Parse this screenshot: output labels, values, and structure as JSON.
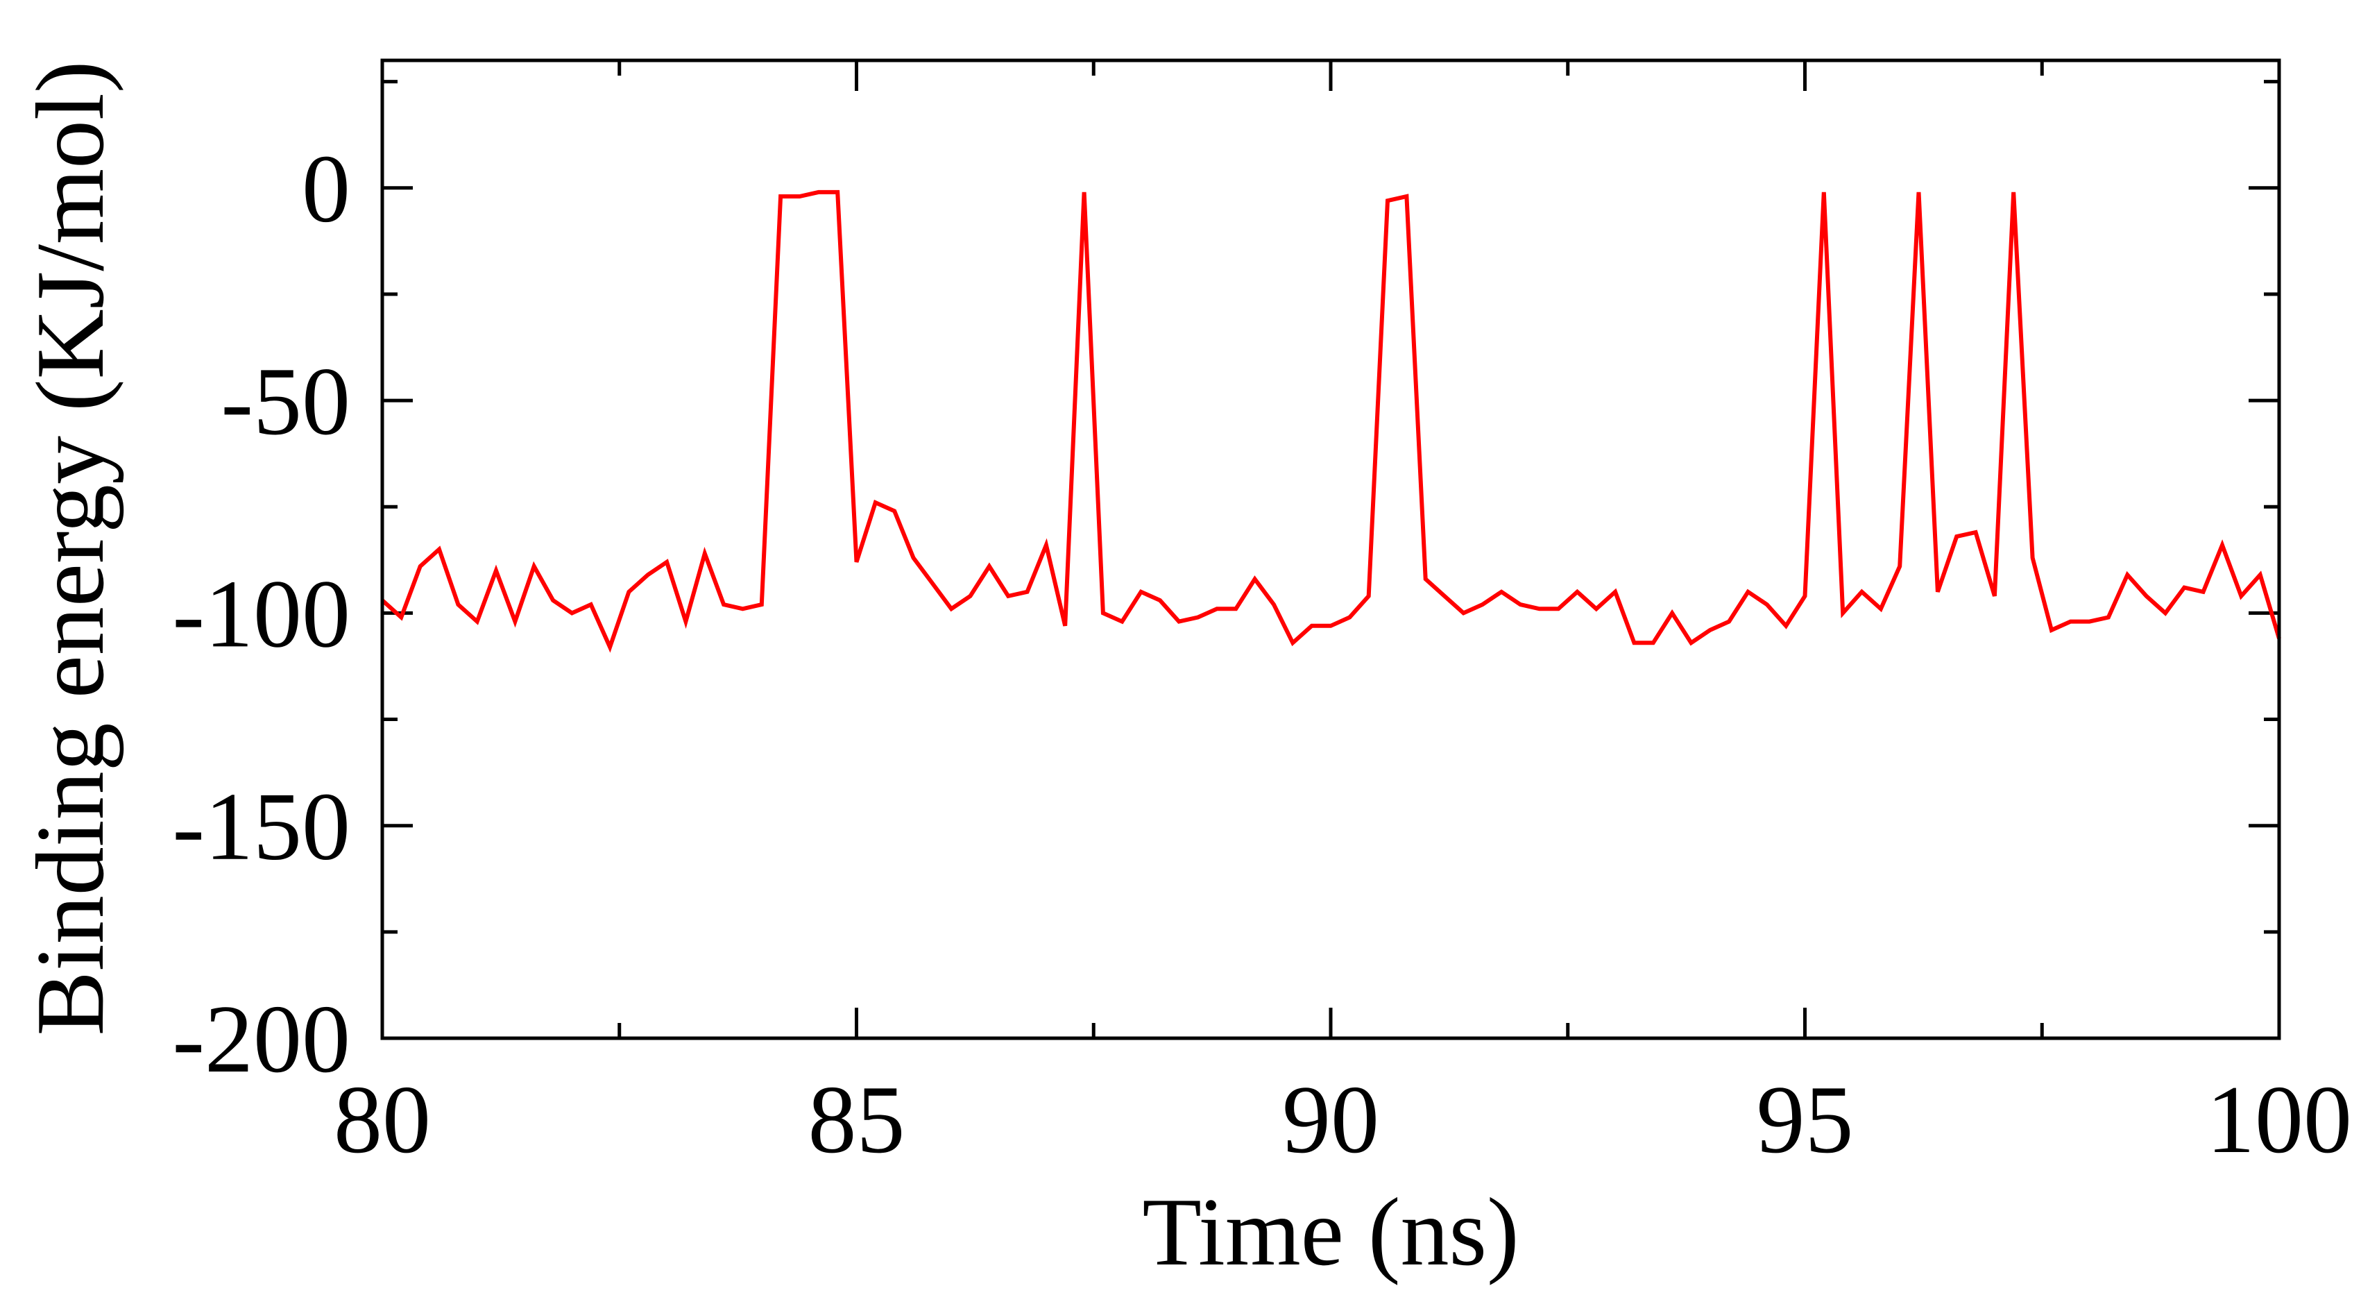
{
  "chart_data": {
    "type": "line",
    "title": "",
    "xlabel": "Time (ns)",
    "ylabel": "Binding energy (KJ/mol)",
    "xlim": [
      80,
      100
    ],
    "ylim": [
      -200,
      30
    ],
    "x_ticks": [
      80,
      85,
      90,
      95,
      100
    ],
    "x_tick_labels": [
      "80",
      "85",
      "90",
      "95",
      "100"
    ],
    "y_ticks": [
      -200,
      -150,
      -100,
      -50,
      0
    ],
    "y_tick_labels": [
      "-200",
      "-150",
      "-100",
      "-50",
      "0"
    ],
    "x_minor_step": 2.5,
    "y_minor_step": 25,
    "grid": false,
    "series": [
      {
        "color": "#ff0000",
        "x": [
          80.0,
          80.2,
          80.4,
          80.6,
          80.8,
          81.0,
          81.2,
          81.4,
          81.6,
          81.8,
          82.0,
          82.2,
          82.4,
          82.6,
          82.8,
          83.0,
          83.2,
          83.4,
          83.6,
          83.8,
          84.0,
          84.2,
          84.4,
          84.6,
          84.8,
          85.0,
          85.2,
          85.4,
          85.6,
          85.8,
          86.0,
          86.2,
          86.4,
          86.6,
          86.8,
          87.0,
          87.2,
          87.4,
          87.6,
          87.8,
          88.0,
          88.2,
          88.4,
          88.6,
          88.8,
          89.0,
          89.2,
          89.4,
          89.6,
          89.8,
          90.0,
          90.2,
          90.4,
          90.6,
          90.8,
          91.0,
          91.2,
          91.4,
          91.6,
          91.8,
          92.0,
          92.2,
          92.4,
          92.6,
          92.8,
          93.0,
          93.2,
          93.4,
          93.6,
          93.8,
          94.0,
          94.2,
          94.4,
          94.6,
          94.8,
          95.0,
          95.2,
          95.4,
          95.6,
          95.8,
          96.0,
          96.2,
          96.4,
          96.6,
          96.8,
          97.0,
          97.2,
          97.4,
          97.6,
          97.8,
          98.0,
          98.2,
          98.4,
          98.6,
          98.8,
          99.0,
          99.2,
          99.4,
          99.6,
          99.8,
          100.0
        ],
        "y": [
          -97,
          -101,
          -89,
          -85,
          -98,
          -102,
          -90,
          -102,
          -89,
          -97,
          -100,
          -98,
          -108,
          -95,
          -91,
          -88,
          -102,
          -86,
          -98,
          -99,
          -98,
          -2,
          -2,
          -1,
          -1,
          -88,
          -74,
          -76,
          -87,
          -93,
          -99,
          -96,
          -89,
          -96,
          -95,
          -84,
          -103,
          -1,
          -100,
          -102,
          -95,
          -97,
          -102,
          -101,
          -99,
          -99,
          -92,
          -98,
          -107,
          -103,
          -103,
          -101,
          -96,
          -3,
          -2,
          -92,
          -96,
          -100,
          -98,
          -95,
          -98,
          -99,
          -99,
          -95,
          -99,
          -95,
          -107,
          -107,
          -100,
          -107,
          -104,
          -102,
          -95,
          -98,
          -103,
          -96,
          -1,
          -100,
          -95,
          -99,
          -89,
          -1,
          -95,
          -82,
          -81,
          -96,
          -1,
          -87,
          -104,
          -102,
          -102,
          -101,
          -91,
          -96,
          -100,
          -94,
          -95,
          -84,
          -96,
          -91,
          -106
        ]
      }
    ]
  }
}
